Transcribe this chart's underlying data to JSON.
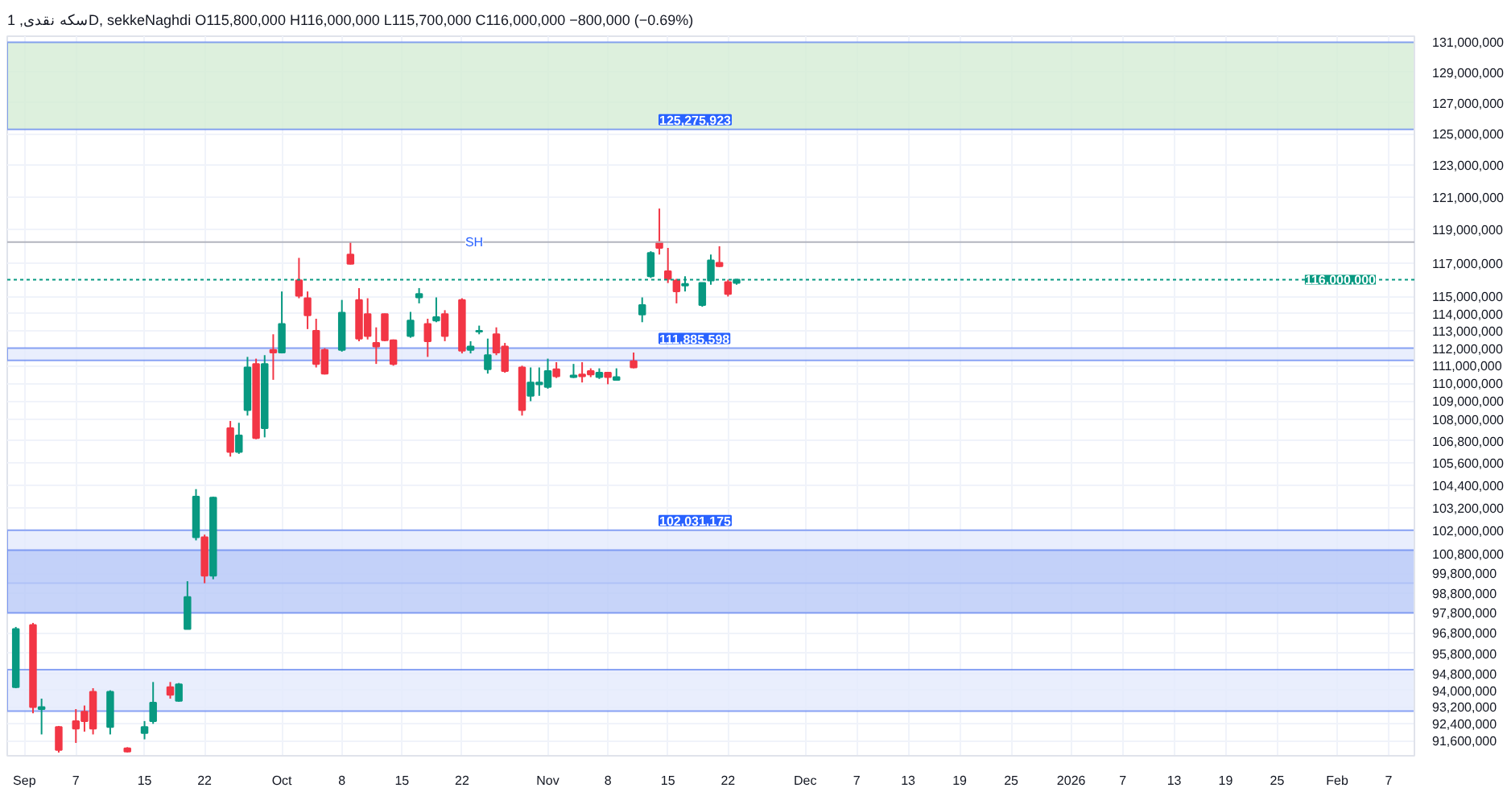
{
  "chart_data": {
    "type": "candlestick",
    "title": "سکه نقدی, 1D, sekkeNaghdi  O115,800,000  H116,000,000  L115,700,000  C116,000,000  −800,000 (−0.69%)",
    "x": [
      "2025-08-31",
      "2025-09-02",
      "2025-09-03",
      "2025-09-05",
      "2025-09-07",
      "2025-09-08",
      "2025-09-09",
      "2025-09-11",
      "2025-09-13",
      "2025-09-15",
      "2025-09-16",
      "2025-09-18",
      "2025-09-19",
      "2025-09-20",
      "2025-09-21",
      "2025-09-22",
      "2025-09-23",
      "2025-09-25",
      "2025-09-26",
      "2025-09-27",
      "2025-09-28",
      "2025-09-29",
      "2025-09-30",
      "2025-10-01",
      "2025-10-03",
      "2025-10-04",
      "2025-10-05",
      "2025-10-06",
      "2025-10-08",
      "2025-10-09",
      "2025-10-10",
      "2025-10-11",
      "2025-10-12",
      "2025-10-13",
      "2025-10-14",
      "2025-10-16",
      "2025-10-17",
      "2025-10-18",
      "2025-10-19",
      "2025-10-20",
      "2025-10-22",
      "2025-10-23",
      "2025-10-24",
      "2025-10-25",
      "2025-10-26",
      "2025-10-27",
      "2025-10-29",
      "2025-10-30",
      "2025-10-31",
      "2025-11-01",
      "2025-11-02",
      "2025-11-04",
      "2025-11-05",
      "2025-11-06",
      "2025-11-07",
      "2025-11-08",
      "2025-11-09",
      "2025-11-11",
      "2025-11-12",
      "2025-11-13",
      "2025-11-14",
      "2025-11-15",
      "2025-11-16",
      "2025-11-17",
      "2025-11-19",
      "2025-11-20",
      "2025-11-21",
      "2025-11-22",
      "2025-11-23"
    ],
    "ohlc": [
      [
        94150000,
        97100000,
        94100000,
        97000000
      ],
      [
        97200000,
        97300000,
        92900000,
        93200000
      ],
      [
        93100000,
        93600000,
        91900000,
        93200000
      ],
      [
        92250000,
        92300000,
        91050000,
        91170000
      ],
      [
        92530000,
        93100000,
        91500000,
        92170000
      ],
      [
        92970000,
        93270000,
        92030000,
        92530000
      ],
      [
        93930000,
        94100000,
        91900000,
        92170000
      ],
      [
        92250000,
        94000000,
        91900000,
        93930000
      ],
      [
        91250000,
        91300000,
        91050000,
        91100000
      ],
      [
        91960000,
        92530000,
        91670000,
        92250000
      ],
      [
        92530000,
        94400000,
        92400000,
        93410000
      ],
      [
        94150000,
        94400000,
        93600000,
        93780000
      ],
      [
        93490000,
        94350000,
        93450000,
        94290000
      ],
      [
        97000000,
        99400000,
        97000000,
        98600000
      ],
      [
        101660000,
        104200000,
        101500000,
        103800000
      ],
      [
        101660000,
        101800000,
        99300000,
        99680000
      ],
      [
        99680000,
        103800000,
        99500000,
        103750000
      ],
      [
        107500000,
        107900000,
        105950000,
        106200000
      ],
      [
        106200000,
        107800000,
        106100000,
        107100000
      ],
      [
        108500000,
        111500000,
        108200000,
        110900000
      ],
      [
        111100000,
        111400000,
        106900000,
        106960000
      ],
      [
        107500000,
        111600000,
        107000000,
        111100000
      ],
      [
        111900000,
        112800000,
        110200000,
        111750000
      ],
      [
        111750000,
        115300000,
        111700000,
        113400000
      ],
      [
        115960000,
        117300000,
        114900000,
        115050000
      ],
      [
        114900000,
        115300000,
        113100000,
        113900000
      ],
      [
        113000000,
        113700000,
        110900000,
        111100000
      ],
      [
        111900000,
        112000000,
        110500000,
        110550000
      ],
      [
        111900000,
        114800000,
        111800000,
        114050000
      ],
      [
        117500000,
        118250000,
        116900000,
        116950000
      ],
      [
        114800000,
        115500000,
        112400000,
        112550000
      ],
      [
        113970000,
        114900000,
        112500000,
        112700000
      ],
      [
        112300000,
        113200000,
        111100000,
        112100000
      ],
      [
        113970000,
        114000000,
        112400000,
        112450000
      ],
      [
        112450000,
        112500000,
        111000000,
        111100000
      ],
      [
        112700000,
        114100000,
        112600000,
        113600000
      ],
      [
        114950000,
        115500000,
        114600000,
        115150000
      ],
      [
        113400000,
        113700000,
        111500000,
        112400000
      ],
      [
        113600000,
        114950000,
        113500000,
        113800000
      ],
      [
        113970000,
        114200000,
        112400000,
        112700000
      ],
      [
        114800000,
        114900000,
        111700000,
        111850000
      ],
      [
        111900000,
        112400000,
        111700000,
        112100000
      ],
      [
        112950000,
        113300000,
        112800000,
        113000000
      ],
      [
        110800000,
        112550000,
        110550000,
        111600000
      ],
      [
        112800000,
        113200000,
        111600000,
        111750000
      ],
      [
        112100000,
        112300000,
        110600000,
        110700000
      ],
      [
        110900000,
        111000000,
        108200000,
        108500000
      ],
      [
        109300000,
        110900000,
        109000000,
        110050000
      ],
      [
        109950000,
        110900000,
        109300000,
        110050000
      ],
      [
        109800000,
        111400000,
        109700000,
        110700000
      ],
      [
        110800000,
        111200000,
        110300000,
        110400000
      ],
      [
        110350000,
        111100000,
        110300000,
        110450000
      ],
      [
        110500000,
        111200000,
        110050000,
        110400000
      ],
      [
        110700000,
        110850000,
        110350000,
        110500000
      ],
      [
        110350000,
        110850000,
        110250000,
        110600000
      ],
      [
        110600000,
        110650000,
        109950000,
        110350000
      ],
      [
        110200000,
        110850000,
        110200000,
        110350000
      ],
      [
        111250000,
        111750000,
        110850000,
        110900000
      ],
      [
        113950000,
        114950000,
        113500000,
        114500000
      ],
      [
        116200000,
        117700000,
        116100000,
        117600000
      ],
      [
        118250000,
        120300000,
        117500000,
        117900000
      ],
      [
        116500000,
        117900000,
        115800000,
        116050000
      ],
      [
        115950000,
        116050000,
        114600000,
        115300000
      ],
      [
        115650000,
        116200000,
        115300000,
        115750000
      ],
      [
        114500000,
        115800000,
        114400000,
        115800000
      ],
      [
        115950000,
        117500000,
        115700000,
        117150000
      ],
      [
        117000000,
        118000000,
        116750000,
        116800000
      ],
      [
        115850000,
        116000000,
        115000000,
        115150000
      ],
      [
        115800000,
        116000000,
        115700000,
        116000000
      ]
    ],
    "colors": [
      "#089981",
      "#f23645",
      "#089981",
      "#f23645",
      "#f23645",
      "#f23645",
      "#f23645",
      "#089981",
      "#f23645",
      "#089981",
      "#089981",
      "#f23645",
      "#089981",
      "#089981",
      "#089981",
      "#f23645",
      "#089981",
      "#f23645",
      "#089981",
      "#089981",
      "#f23645",
      "#089981",
      "#f23645",
      "#089981",
      "#f23645",
      "#f23645",
      "#f23645",
      "#f23645",
      "#089981",
      "#f23645",
      "#f23645",
      "#f23645",
      "#f23645",
      "#f23645",
      "#f23645",
      "#089981",
      "#089981",
      "#f23645",
      "#089981",
      "#f23645",
      "#f23645",
      "#089981",
      "#089981",
      "#089981",
      "#f23645",
      "#f23645",
      "#f23645",
      "#089981",
      "#089981",
      "#089981",
      "#f23645",
      "#089981",
      "#f23645",
      "#f23645",
      "#089981",
      "#f23645",
      "#089981",
      "#f23645",
      "#089981",
      "#089981",
      "#f23645",
      "#f23645",
      "#f23645",
      "#089981",
      "#089981",
      "#089981",
      "#f23645",
      "#f23645",
      "#089981"
    ],
    "xlim": [
      "2025-08-30",
      "2026-02-10"
    ],
    "xticks": [
      {
        "value": "2025-09-01",
        "label": "Sep"
      },
      {
        "value": "2025-09-07",
        "label": "7"
      },
      {
        "value": "2025-09-15",
        "label": "15"
      },
      {
        "value": "2025-09-22",
        "label": "22"
      },
      {
        "value": "2025-10-01",
        "label": "Oct"
      },
      {
        "value": "2025-10-08",
        "label": "8"
      },
      {
        "value": "2025-10-15",
        "label": "15"
      },
      {
        "value": "2025-10-22",
        "label": "22"
      },
      {
        "value": "2025-11-01",
        "label": "Nov"
      },
      {
        "value": "2025-11-08",
        "label": "8"
      },
      {
        "value": "2025-11-15",
        "label": "15"
      },
      {
        "value": "2025-11-22",
        "label": "22"
      },
      {
        "value": "2025-12-01",
        "label": "Dec"
      },
      {
        "value": "2025-12-07",
        "label": "7"
      },
      {
        "value": "2025-12-13",
        "label": "13"
      },
      {
        "value": "2025-12-19",
        "label": "19"
      },
      {
        "value": "2025-12-25",
        "label": "25"
      },
      {
        "value": "2026-01-01",
        "label": "2026"
      },
      {
        "value": "2026-01-07",
        "label": "7"
      },
      {
        "value": "2026-01-13",
        "label": "13"
      },
      {
        "value": "2026-01-19",
        "label": "19"
      },
      {
        "value": "2026-01-25",
        "label": "25"
      },
      {
        "value": "2026-02-01",
        "label": "Feb"
      },
      {
        "value": "2026-02-07",
        "label": "7"
      }
    ],
    "ylim": [
      90900000,
      131400000
    ],
    "yticks": [
      {
        "value": 91600000,
        "label": "91,600,000"
      },
      {
        "value": 92400000,
        "label": "92,400,000"
      },
      {
        "value": 93200000,
        "label": "93,200,000"
      },
      {
        "value": 94000000,
        "label": "94,000,000"
      },
      {
        "value": 94800000,
        "label": "94,800,000"
      },
      {
        "value": 95800000,
        "label": "95,800,000"
      },
      {
        "value": 96800000,
        "label": "96,800,000"
      },
      {
        "value": 97800000,
        "label": "97,800,000"
      },
      {
        "value": 98800000,
        "label": "98,800,000"
      },
      {
        "value": 99800000,
        "label": "99,800,000"
      },
      {
        "value": 100800000,
        "label": "100,800,000"
      },
      {
        "value": 102000000,
        "label": "102,000,000"
      },
      {
        "value": 103200000,
        "label": "103,200,000"
      },
      {
        "value": 104400000,
        "label": "104,400,000"
      },
      {
        "value": 105600000,
        "label": "105,600,000"
      },
      {
        "value": 106800000,
        "label": "106,800,000"
      },
      {
        "value": 108000000,
        "label": "108,000,000"
      },
      {
        "value": 109000000,
        "label": "109,000,000"
      },
      {
        "value": 110000000,
        "label": "110,000,000"
      },
      {
        "value": 111000000,
        "label": "111,000,000"
      },
      {
        "value": 112000000,
        "label": "112,000,000"
      },
      {
        "value": 113000000,
        "label": "113,000,000"
      },
      {
        "value": 114000000,
        "label": "114,000,000"
      },
      {
        "value": 115000000,
        "label": "115,000,000"
      },
      {
        "value": 117000000,
        "label": "117,000,000"
      },
      {
        "value": 119000000,
        "label": "119,000,000"
      },
      {
        "value": 121000000,
        "label": "121,000,000"
      },
      {
        "value": 123000000,
        "label": "123,000,000"
      },
      {
        "value": 125000000,
        "label": "125,000,000"
      },
      {
        "value": 127000000,
        "label": "127,000,000"
      },
      {
        "value": 129000000,
        "label": "129,000,000"
      },
      {
        "value": 131000000,
        "label": "131,000,000"
      }
    ],
    "log": true,
    "grid": true,
    "ref_lines": [
      {
        "axis": "y",
        "value": 116000000,
        "label": "116,000,000",
        "color": "#089981",
        "line_style": "dotted"
      },
      {
        "axis": "y",
        "value": 118250000,
        "label": "SH",
        "color": "#b2b5be",
        "line_style": "solid"
      }
    ],
    "bands": [
      {
        "axis": "y",
        "from": 125275923,
        "to": 131000000,
        "label": "125,275,923",
        "color": "#d4ecd5"
      },
      {
        "axis": "y",
        "from": 111300000,
        "to": 112000000,
        "label": "111,885,598",
        "color": "#e3eafd"
      },
      {
        "axis": "y",
        "from": 99300000,
        "to": 102031175,
        "label": "102,031,175",
        "color": "#e3eafd"
      },
      {
        "axis": "y",
        "from": 97800000,
        "to": 101000000,
        "color": "#b9c9f8"
      },
      {
        "axis": "y",
        "from": 93000000,
        "to": 95000000,
        "color": "#e3eafd"
      }
    ]
  }
}
